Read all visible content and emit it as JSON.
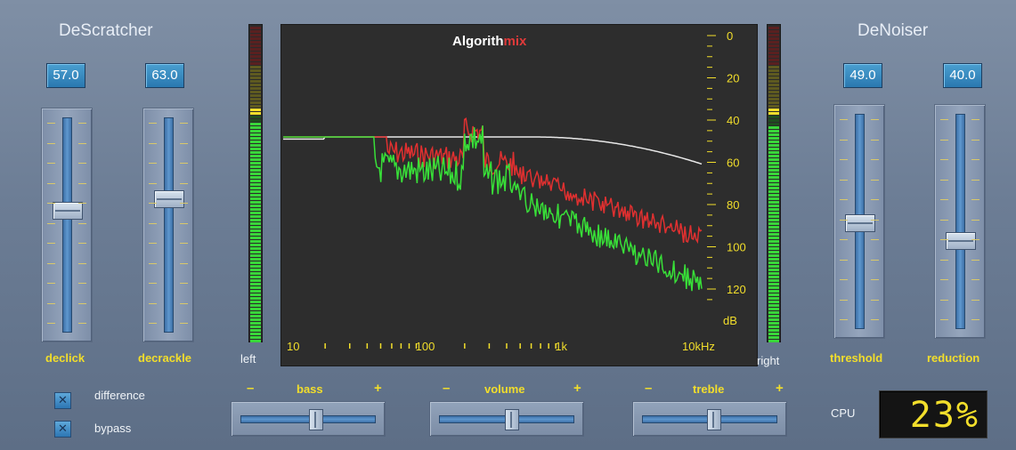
{
  "descratcher": {
    "title": "DeScratcher",
    "declick": {
      "value": "57.0",
      "label": "declick",
      "level": 0.57
    },
    "decrackle": {
      "value": "63.0",
      "label": "decrackle",
      "level": 0.63
    }
  },
  "denoiser": {
    "title": "DeNoiser",
    "threshold": {
      "value": "49.0",
      "label": "threshold",
      "level": 0.49
    },
    "reduction": {
      "value": "40.0",
      "label": "reduction",
      "level": 0.4
    }
  },
  "meters": {
    "left_label": "left",
    "right_label": "right",
    "left_level": 0.7,
    "right_level": 0.69
  },
  "spectrum": {
    "brand_part1": "Algorith",
    "brand_part2": "mix",
    "brand_colors": {
      "part1": "#ffffff",
      "part2": "#e03a3a"
    },
    "db_labels": [
      "0",
      "20",
      "40",
      "60",
      "80",
      "100",
      "120",
      "dB"
    ],
    "freq_labels": [
      "10",
      "100",
      "1k",
      "10kHz"
    ],
    "colors": {
      "threshold": "#e8e8e8",
      "input": "#e03030",
      "output": "#38e038",
      "axis": "#f2de2b"
    }
  },
  "options": {
    "difference": {
      "label": "difference",
      "checked": true
    },
    "bypass": {
      "label": "bypass",
      "checked": true
    }
  },
  "eq": {
    "minus": "–",
    "plus": "+",
    "bass": {
      "label": "bass",
      "level": 0.6
    },
    "volume": {
      "label": "volume",
      "level": 0.58
    },
    "treble": {
      "label": "treble",
      "level": 0.57
    }
  },
  "cpu": {
    "label": "CPU",
    "value": "23%"
  },
  "colors": {
    "accent": "#f2de2b",
    "panel": "#7f8fa5",
    "valuebox": "#3b8cc4"
  }
}
